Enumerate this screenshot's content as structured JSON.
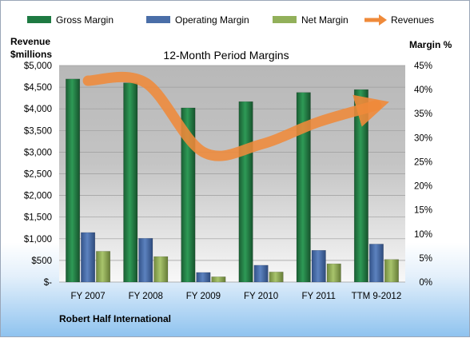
{
  "chart_data": {
    "type": "bar",
    "title": "12-Month Period Margins",
    "footer": "Robert Half International",
    "left_axis_label": [
      "Revenue",
      "$millions"
    ],
    "right_axis_label": "Margin %",
    "categories": [
      "FY 2007",
      "FY 2008",
      "FY 2009",
      "FY 2010",
      "FY 2011",
      "TTM 9-2012"
    ],
    "left_ticks": [
      "$-",
      "$500",
      "$1,000",
      "$1,500",
      "$2,000",
      "$2,500",
      "$3,000",
      "$3,500",
      "$4,000",
      "$4,500",
      "$5,000"
    ],
    "right_ticks": [
      "0%",
      "5%",
      "10%",
      "15%",
      "20%",
      "25%",
      "30%",
      "35%",
      "40%",
      "45%"
    ],
    "ylim_left": [
      0,
      5000
    ],
    "ylim_right": [
      0,
      45
    ],
    "series": [
      {
        "name": "Gross Margin",
        "axis": "right",
        "values": [
          42.2,
          41.4,
          36.2,
          37.5,
          39.4,
          40.0
        ]
      },
      {
        "name": "Operating Margin",
        "axis": "right",
        "values": [
          10.3,
          9.1,
          2.0,
          3.5,
          6.6,
          7.9
        ]
      },
      {
        "name": "Net Margin",
        "axis": "right",
        "values": [
          6.4,
          5.3,
          1.1,
          2.1,
          3.8,
          4.7
        ]
      },
      {
        "name": "Revenues",
        "axis": "left",
        "type": "line",
        "values": [
          4650,
          4600,
          3000,
          3180,
          3700,
          4080
        ]
      }
    ],
    "legend_position": "top",
    "colors": {
      "Gross Margin": "#1e7a42",
      "Operating Margin": "#4a6ea8",
      "Net Margin": "#92b05a",
      "Revenues": "#ef8a3a"
    }
  }
}
